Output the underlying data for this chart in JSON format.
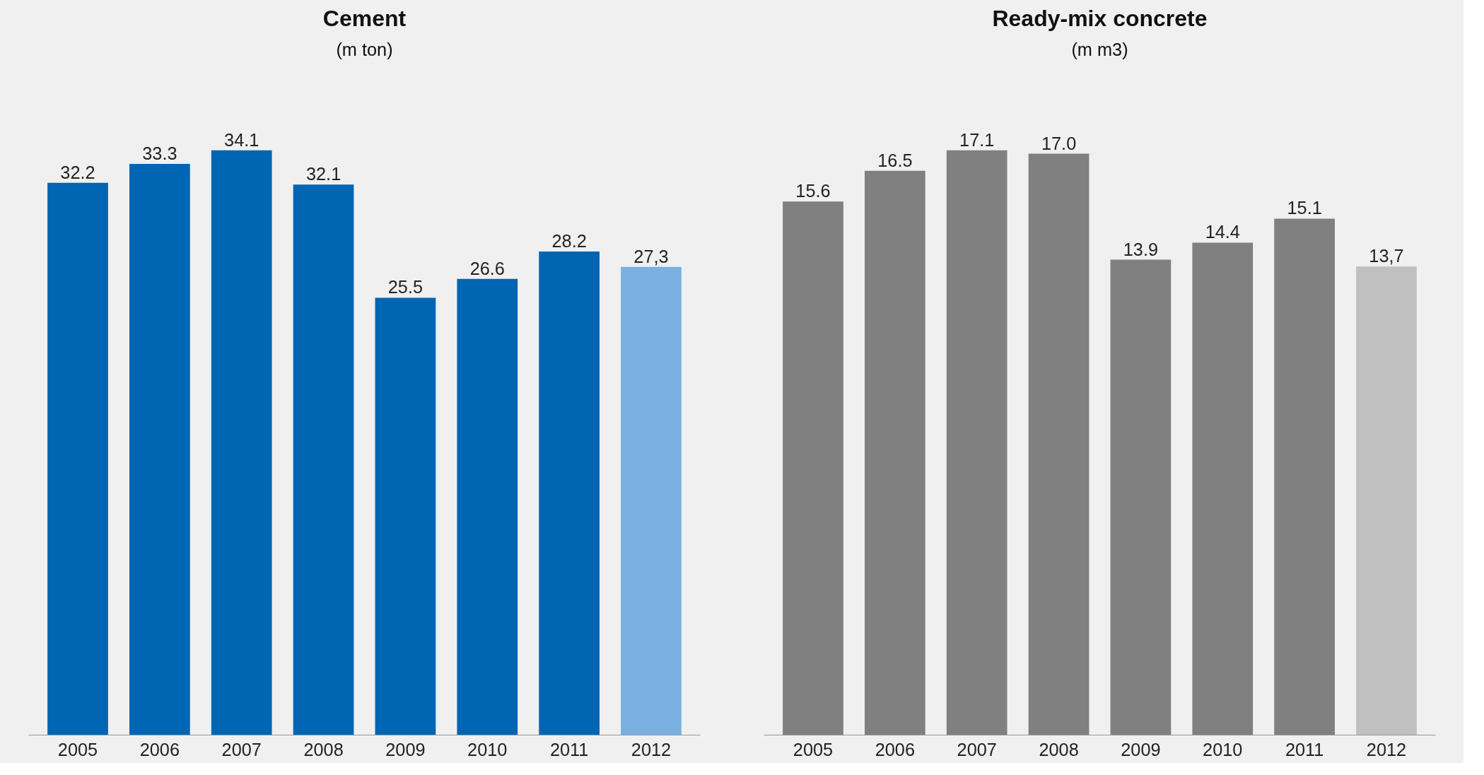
{
  "chart_data": [
    {
      "type": "bar",
      "title": "Cement",
      "subtitle": "(m ton)",
      "categories": [
        "2005",
        "2006",
        "2007",
        "2008",
        "2009",
        "2010",
        "2011",
        "2012"
      ],
      "values": [
        32.2,
        33.3,
        34.1,
        32.1,
        25.5,
        26.6,
        28.2,
        27.3
      ],
      "colors": [
        "#0066b3",
        "#0066b3",
        "#0066b3",
        "#0066b3",
        "#0066b3",
        "#0066b3",
        "#0066b3",
        "#7ab0e2"
      ],
      "value_labels": [
        "32.2",
        "33.3",
        "34.1",
        "32.1",
        "25.5",
        "26.6",
        "28.2",
        "27,3"
      ],
      "grid": false,
      "tick_labels": "x"
    },
    {
      "type": "bar",
      "title": "Ready-mix concrete",
      "subtitle": "(m m3)",
      "categories": [
        "2005",
        "2006",
        "2007",
        "2008",
        "2009",
        "2010",
        "2011",
        "2012"
      ],
      "values": [
        15.6,
        16.5,
        17.1,
        17.0,
        13.9,
        14.4,
        15.1,
        13.7
      ],
      "colors": [
        "#808080",
        "#808080",
        "#808080",
        "#808080",
        "#808080",
        "#808080",
        "#808080",
        "#c0c0c0"
      ],
      "value_labels": [
        "15.6",
        "16.5",
        "17.1",
        "17.0",
        "13.9",
        "14.4",
        "15.1",
        "13,7"
      ],
      "grid": false,
      "tick_labels": "x"
    }
  ]
}
